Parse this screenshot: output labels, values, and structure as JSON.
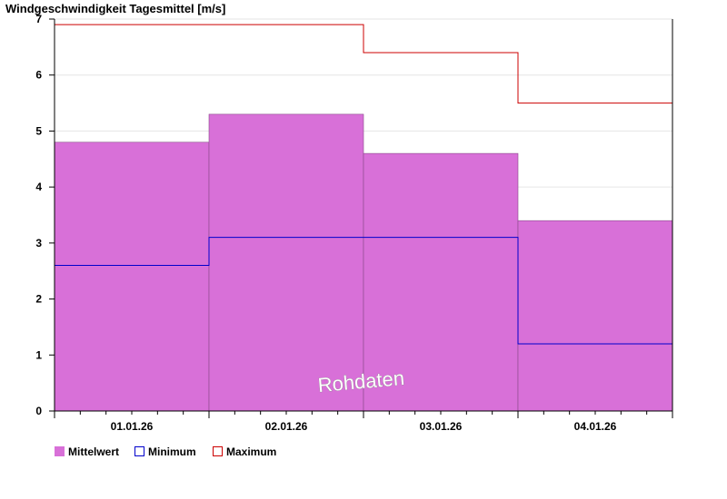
{
  "chart_data": {
    "type": "bar",
    "title": "Windgeschwindigkeit Tagesmittel [m/s]",
    "categories": [
      "01.01.26",
      "02.01.26",
      "03.01.26",
      "04.01.26"
    ],
    "series": [
      {
        "name": "Mittelwert",
        "values": [
          4.8,
          5.3,
          4.6,
          3.4
        ],
        "color": "#d870d8",
        "style": "filled-bar"
      },
      {
        "name": "Minimum",
        "values": [
          2.6,
          3.1,
          3.1,
          1.2
        ],
        "color": "#0000cc",
        "style": "step"
      },
      {
        "name": "Maximum",
        "values": [
          6.9,
          6.9,
          6.4,
          5.5
        ],
        "color": "#cc0000",
        "style": "step"
      }
    ],
    "ylim": [
      0,
      7
    ],
    "yticks": [
      "0",
      "1",
      "2",
      "3",
      "4",
      "5",
      "6",
      "7"
    ],
    "grid": true,
    "legend_placement": "bottom-left",
    "watermark": "Rohdaten"
  }
}
